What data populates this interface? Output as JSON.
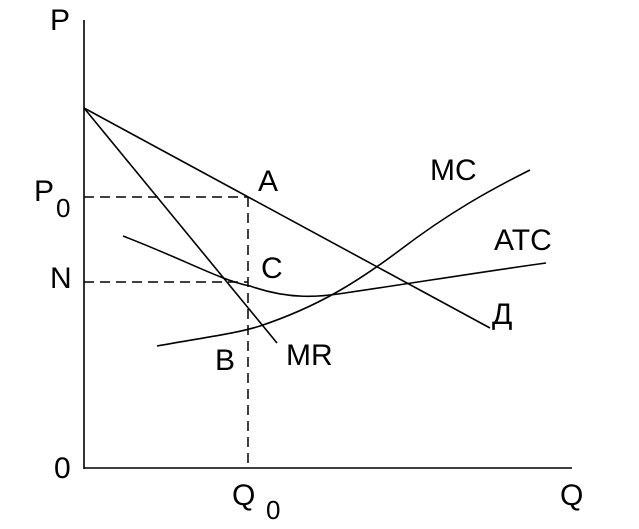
{
  "axes": {
    "y_label": "P",
    "x_label": "Q",
    "origin": "0"
  },
  "price_levels": [
    {
      "label": "P",
      "subscript": "0"
    },
    {
      "label": "N"
    }
  ],
  "quantity": {
    "label": "Q",
    "subscript": "0"
  },
  "points": [
    "A",
    "C",
    "B"
  ],
  "curves": [
    "MC",
    "ATC",
    "Д",
    "MR"
  ]
}
